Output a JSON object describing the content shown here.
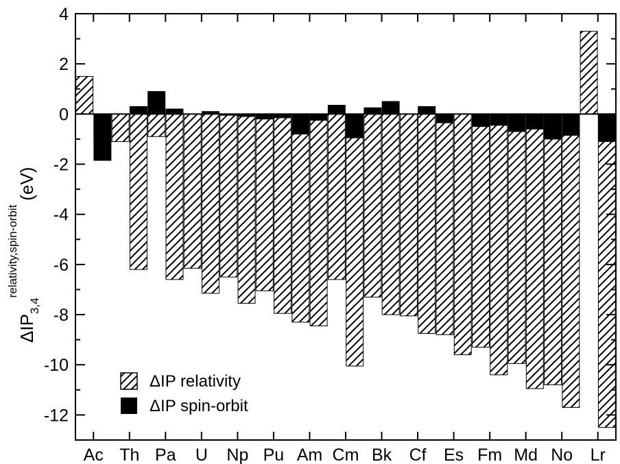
{
  "chart_data": {
    "type": "bar",
    "title": "",
    "ylabel": {
      "base": "ΔIP",
      "subscript": "3,4",
      "superscript": "relativity,spin-orbit",
      "unit": "(eV)"
    },
    "xlabel": "",
    "ylim": [
      -13,
      4
    ],
    "yticks": [
      "-12",
      "-10",
      "-8",
      "-6",
      "-4",
      "-2",
      "0",
      "2",
      "4"
    ],
    "categories": [
      "Ac",
      "Th",
      "Pa",
      "U",
      "Np",
      "Pu",
      "Am",
      "Cm",
      "Bk",
      "Cf",
      "Es",
      "Fm",
      "Md",
      "No",
      "Lr"
    ],
    "series": [
      {
        "name": "ΔIP relativity",
        "pattern": "hatched",
        "values_left": [
          1.5,
          -1.1,
          -0.9,
          -6.15,
          -6.5,
          -7.05,
          -8.3,
          -6.6,
          -7.3,
          -8.05,
          -8.8,
          -9.3,
          -9.95,
          -10.8,
          3.3
        ],
        "values_right": [
          -1.15,
          -6.2,
          -6.6,
          -7.15,
          -7.55,
          -7.95,
          -8.45,
          -10.05,
          -8.0,
          -8.75,
          -9.6,
          -10.4,
          -10.95,
          -11.7,
          -12.5
        ]
      },
      {
        "name": "ΔIP spin-orbit",
        "color": "#000000",
        "values_left": [
          0.0,
          0.0,
          0.9,
          0.0,
          -0.05,
          -0.2,
          -0.8,
          0.35,
          0.25,
          0.0,
          -0.35,
          -0.5,
          -0.7,
          -1.0,
          0.0
        ],
        "values_right": [
          -1.85,
          0.3,
          0.2,
          0.1,
          -0.1,
          -0.15,
          -0.25,
          -0.95,
          0.5,
          0.3,
          0.0,
          -0.45,
          -0.6,
          -0.85,
          -1.1
        ]
      }
    ],
    "legend": {
      "position": "bottom-left",
      "entries": [
        "ΔIP relativity",
        "ΔIP spin-orbit"
      ]
    },
    "grid": false
  }
}
